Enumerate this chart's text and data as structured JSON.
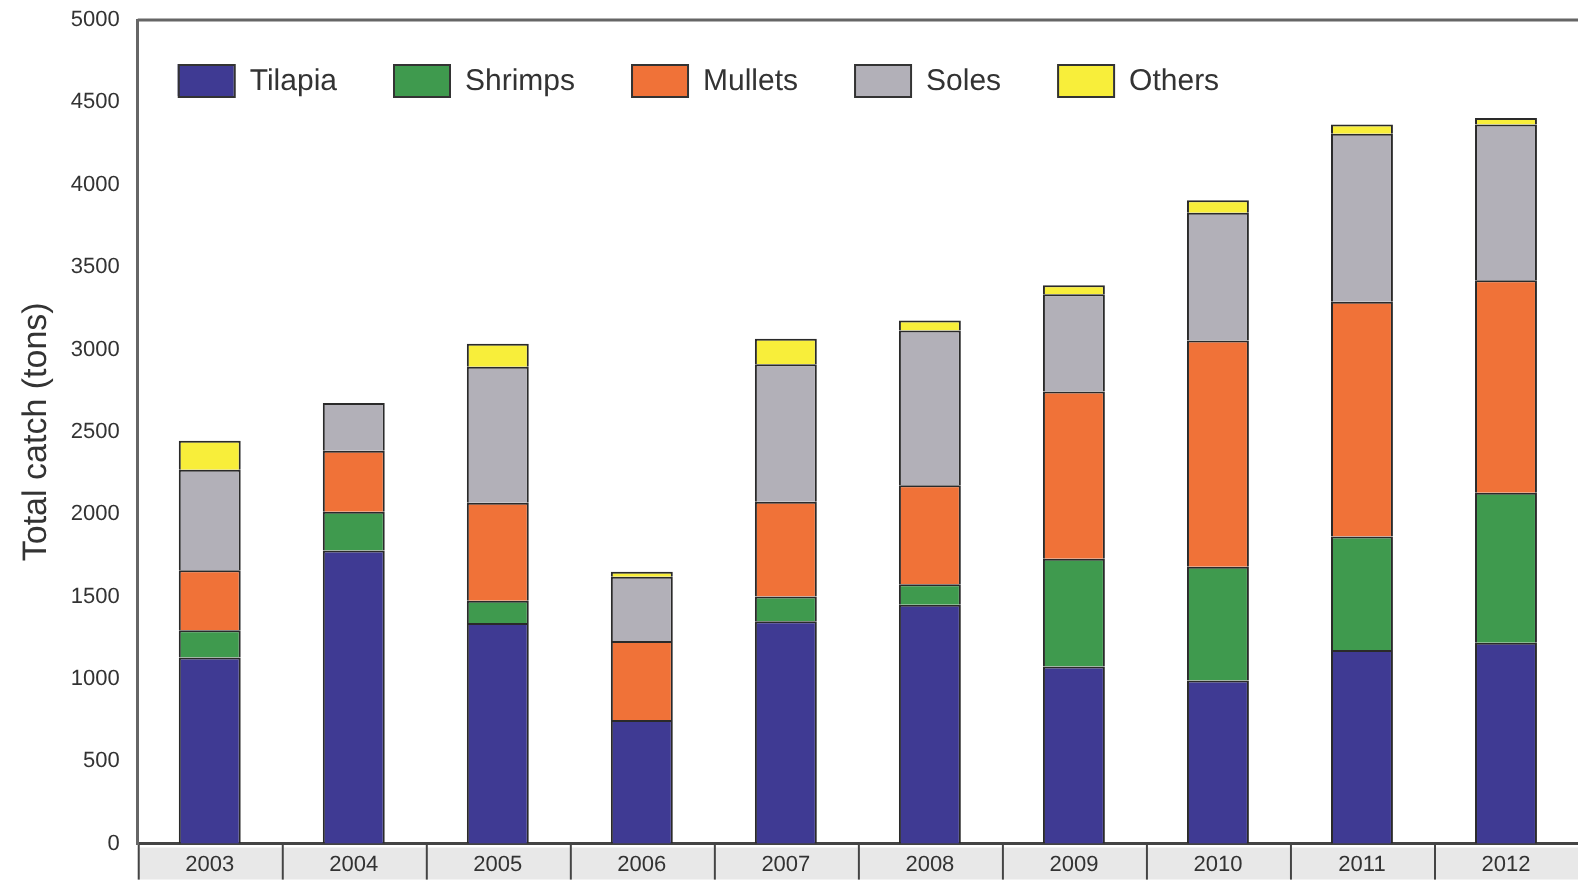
{
  "chart_data": {
    "type": "bar",
    "ylabel": "Total catch (tons)",
    "categories": [
      "2003",
      "2004",
      "2005",
      "2006",
      "2007",
      "2008",
      "2009",
      "2010",
      "2011",
      "2012"
    ],
    "stacked": true,
    "ylim": [
      0,
      5000
    ],
    "yticks": [
      0,
      500,
      1000,
      1500,
      2000,
      2500,
      3000,
      3500,
      4000,
      4500,
      5000
    ],
    "grid": false,
    "legend": "top left",
    "series": [
      {
        "name": "Tilapia",
        "color": "#3f3a93",
        "values": [
          1130,
          1780,
          1340,
          750,
          1350,
          1450,
          1075,
          990,
          1175,
          1220
        ]
      },
      {
        "name": "Shrimps",
        "color": "#3f9a4e",
        "values": [
          165,
          235,
          135,
          0,
          150,
          125,
          655,
          690,
          690,
          910
        ]
      },
      {
        "name": "Mullets",
        "color": "#f07238",
        "values": [
          365,
          370,
          595,
          480,
          575,
          600,
          1015,
          1375,
          1425,
          1290
        ]
      },
      {
        "name": "Soles",
        "color": "#b2b0b8",
        "values": [
          610,
          290,
          825,
          390,
          835,
          940,
          590,
          775,
          1020,
          945
        ]
      },
      {
        "name": "Others",
        "color": "#f8ee3a",
        "values": [
          175,
          0,
          140,
          30,
          155,
          60,
          55,
          75,
          55,
          40
        ]
      }
    ]
  }
}
